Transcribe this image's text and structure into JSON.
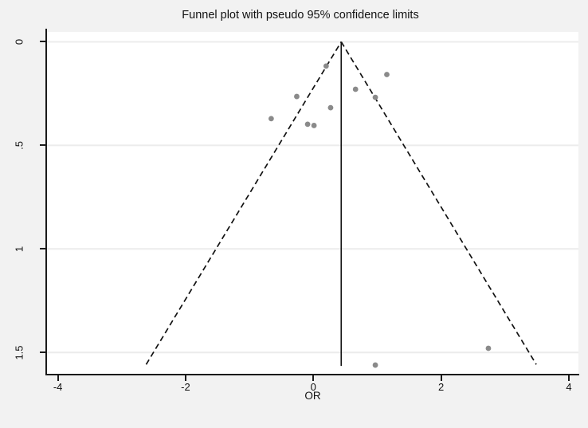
{
  "chart_data": {
    "type": "scatter",
    "title": "Funnel plot with pseudo 95% confidence limits",
    "xlabel": "OR",
    "ylabel": "",
    "xlim": [
      -4.17,
      4.15
    ],
    "ylim": [
      -0.048,
      1.607
    ],
    "x_ticks": [
      -4,
      -2,
      0,
      2,
      4
    ],
    "x_tick_labels": [
      "-4",
      "-2",
      "0",
      "2",
      "4"
    ],
    "y_ticks": [
      0,
      0.5,
      1,
      1.5
    ],
    "y_tick_labels": [
      "0",
      ".5",
      "1",
      "1.5"
    ],
    "grid": "horizontal-only",
    "legend": "none",
    "points": [
      {
        "or": 0.2,
        "se": 0.117
      },
      {
        "or": 1.15,
        "se": 0.158
      },
      {
        "or": 0.66,
        "se": 0.229
      },
      {
        "or": 0.97,
        "se": 0.268
      },
      {
        "or": -0.26,
        "se": 0.264
      },
      {
        "or": 0.27,
        "se": 0.318
      },
      {
        "or": -0.66,
        "se": 0.371
      },
      {
        "or": -0.09,
        "se": 0.398
      },
      {
        "or": 0.01,
        "se": 0.404
      },
      {
        "or": 0.97,
        "se": 1.561
      },
      {
        "or": 2.74,
        "se": 1.48
      }
    ],
    "center_line": {
      "or": 0.436,
      "se_top": 0,
      "se_bottom": 1.565
    },
    "funnel": {
      "apex_or": 0.436,
      "apex_se": 0,
      "max_se": 1.558,
      "z": 1.96
    },
    "colors": {
      "figure_background": "#f2f2f2",
      "plot_background": "#ffffff",
      "axis": "#1a1a1a",
      "gridline": "#ececec",
      "marker": "#8a8a8a",
      "funnel_line": "#111111",
      "center_line": "#111111"
    }
  }
}
